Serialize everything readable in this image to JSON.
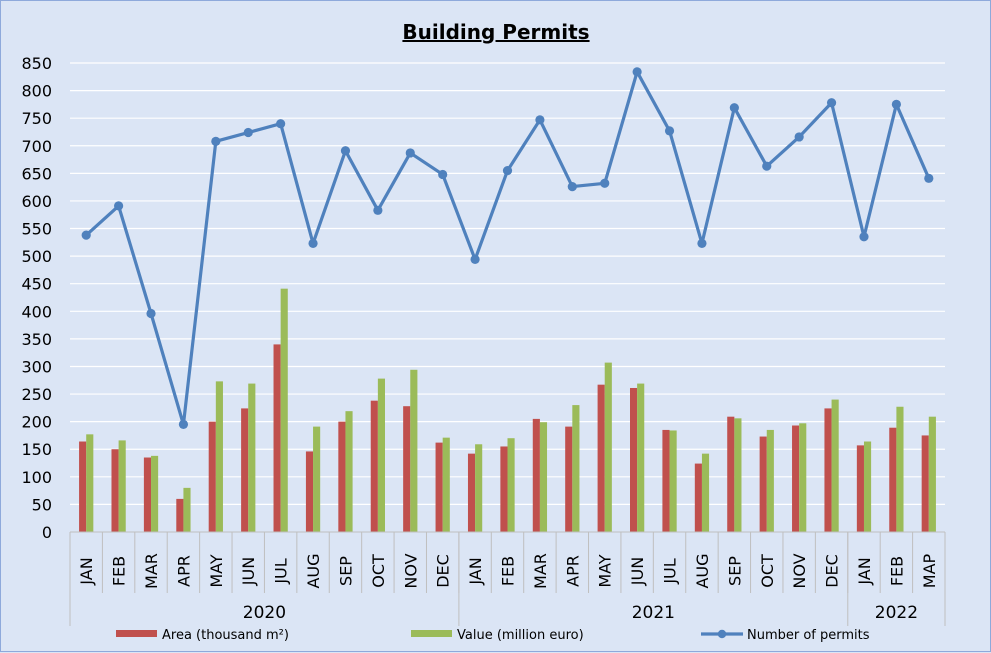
{
  "chart_data": {
    "type": "bar",
    "title": "Building Permits",
    "categories": [
      "JAN",
      "FEB",
      "MAR",
      "APR",
      "MAY",
      "JUN",
      "JUL",
      "AUG",
      "SEP",
      "OCT",
      "NOV",
      "DEC",
      "JAN",
      "FEB",
      "MAR",
      "APR",
      "MAY",
      "JUN",
      "JUL",
      "AUG",
      "SEP",
      "OCT",
      "NOV",
      "DEC",
      "JAN",
      "FEB",
      "MAP"
    ],
    "groups": [
      {
        "label": "2020",
        "count": 12
      },
      {
        "label": "2021",
        "count": 12
      },
      {
        "label": "2022",
        "count": 3
      }
    ],
    "ylim": [
      0,
      850
    ],
    "yticks": [
      0,
      50,
      100,
      150,
      200,
      250,
      300,
      350,
      400,
      450,
      500,
      550,
      600,
      650,
      700,
      750,
      800,
      850
    ],
    "grid": true,
    "legend_position": "bottom",
    "series": [
      {
        "name": "Area (thousand m²)",
        "type": "bar",
        "color": "#c0504d",
        "values": [
          164,
          150,
          135,
          60,
          200,
          224,
          340,
          146,
          200,
          238,
          228,
          162,
          142,
          155,
          205,
          191,
          267,
          261,
          185,
          124,
          209,
          173,
          193,
          224,
          157,
          189,
          175
        ]
      },
      {
        "name": "Value (million euro)",
        "type": "bar",
        "color": "#9bbb59",
        "values": [
          177,
          166,
          138,
          80,
          273,
          269,
          441,
          191,
          219,
          278,
          294,
          171,
          159,
          170,
          199,
          230,
          307,
          269,
          184,
          142,
          206,
          185,
          197,
          240,
          164,
          227,
          209
        ]
      },
      {
        "name": "Number of permits",
        "type": "line",
        "color": "#4f81bd",
        "values": [
          538,
          591,
          396,
          195,
          708,
          724,
          740,
          523,
          691,
          583,
          687,
          648,
          494,
          655,
          747,
          626,
          632,
          834,
          727,
          523,
          769,
          663,
          716,
          778,
          535,
          775,
          641
        ]
      }
    ]
  }
}
